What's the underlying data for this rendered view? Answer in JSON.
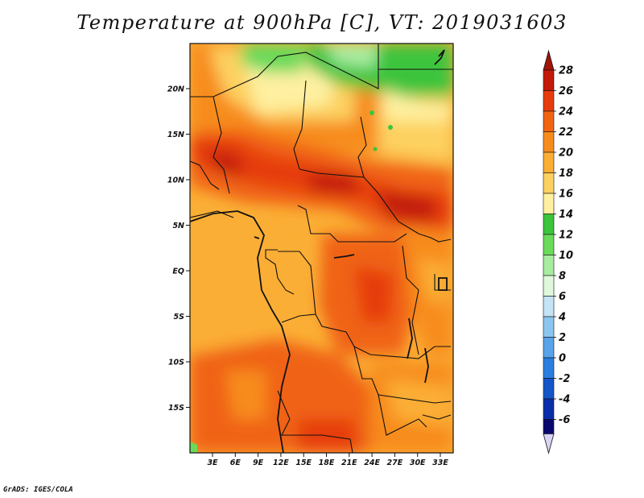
{
  "title": "Temperature at 900hPa [C], VT: 2019031603",
  "credit": "GrADS: IGES/COLA",
  "map": {
    "lat_labels": [
      "20N",
      "15N",
      "10N",
      "5N",
      "EQ",
      "5S",
      "10S",
      "15S"
    ],
    "lon_labels": [
      "3E",
      "6E",
      "9E",
      "12E",
      "15E",
      "18E",
      "21E",
      "24E",
      "27E",
      "30E",
      "33E"
    ]
  },
  "colorbar": {
    "labels": [
      "28",
      "26",
      "24",
      "22",
      "20",
      "18",
      "16",
      "14",
      "12",
      "10",
      "8",
      "6",
      "4",
      "2",
      "0",
      "-2",
      "-4",
      "-6"
    ],
    "colors": [
      "#c31a0a",
      "#e63c0c",
      "#f06414",
      "#f78c1e",
      "#fbae35",
      "#fdd161",
      "#fef0a0",
      "#3cc43c",
      "#6ada5a",
      "#a8eca0",
      "#dff8dc",
      "#c4e4f6",
      "#8cc6f0",
      "#58a4ea",
      "#2a7ee0",
      "#1456c8",
      "#0a2ea8",
      "#08086e"
    ],
    "under_color": "#d8d4f4",
    "over_color": "#a0140a"
  }
}
